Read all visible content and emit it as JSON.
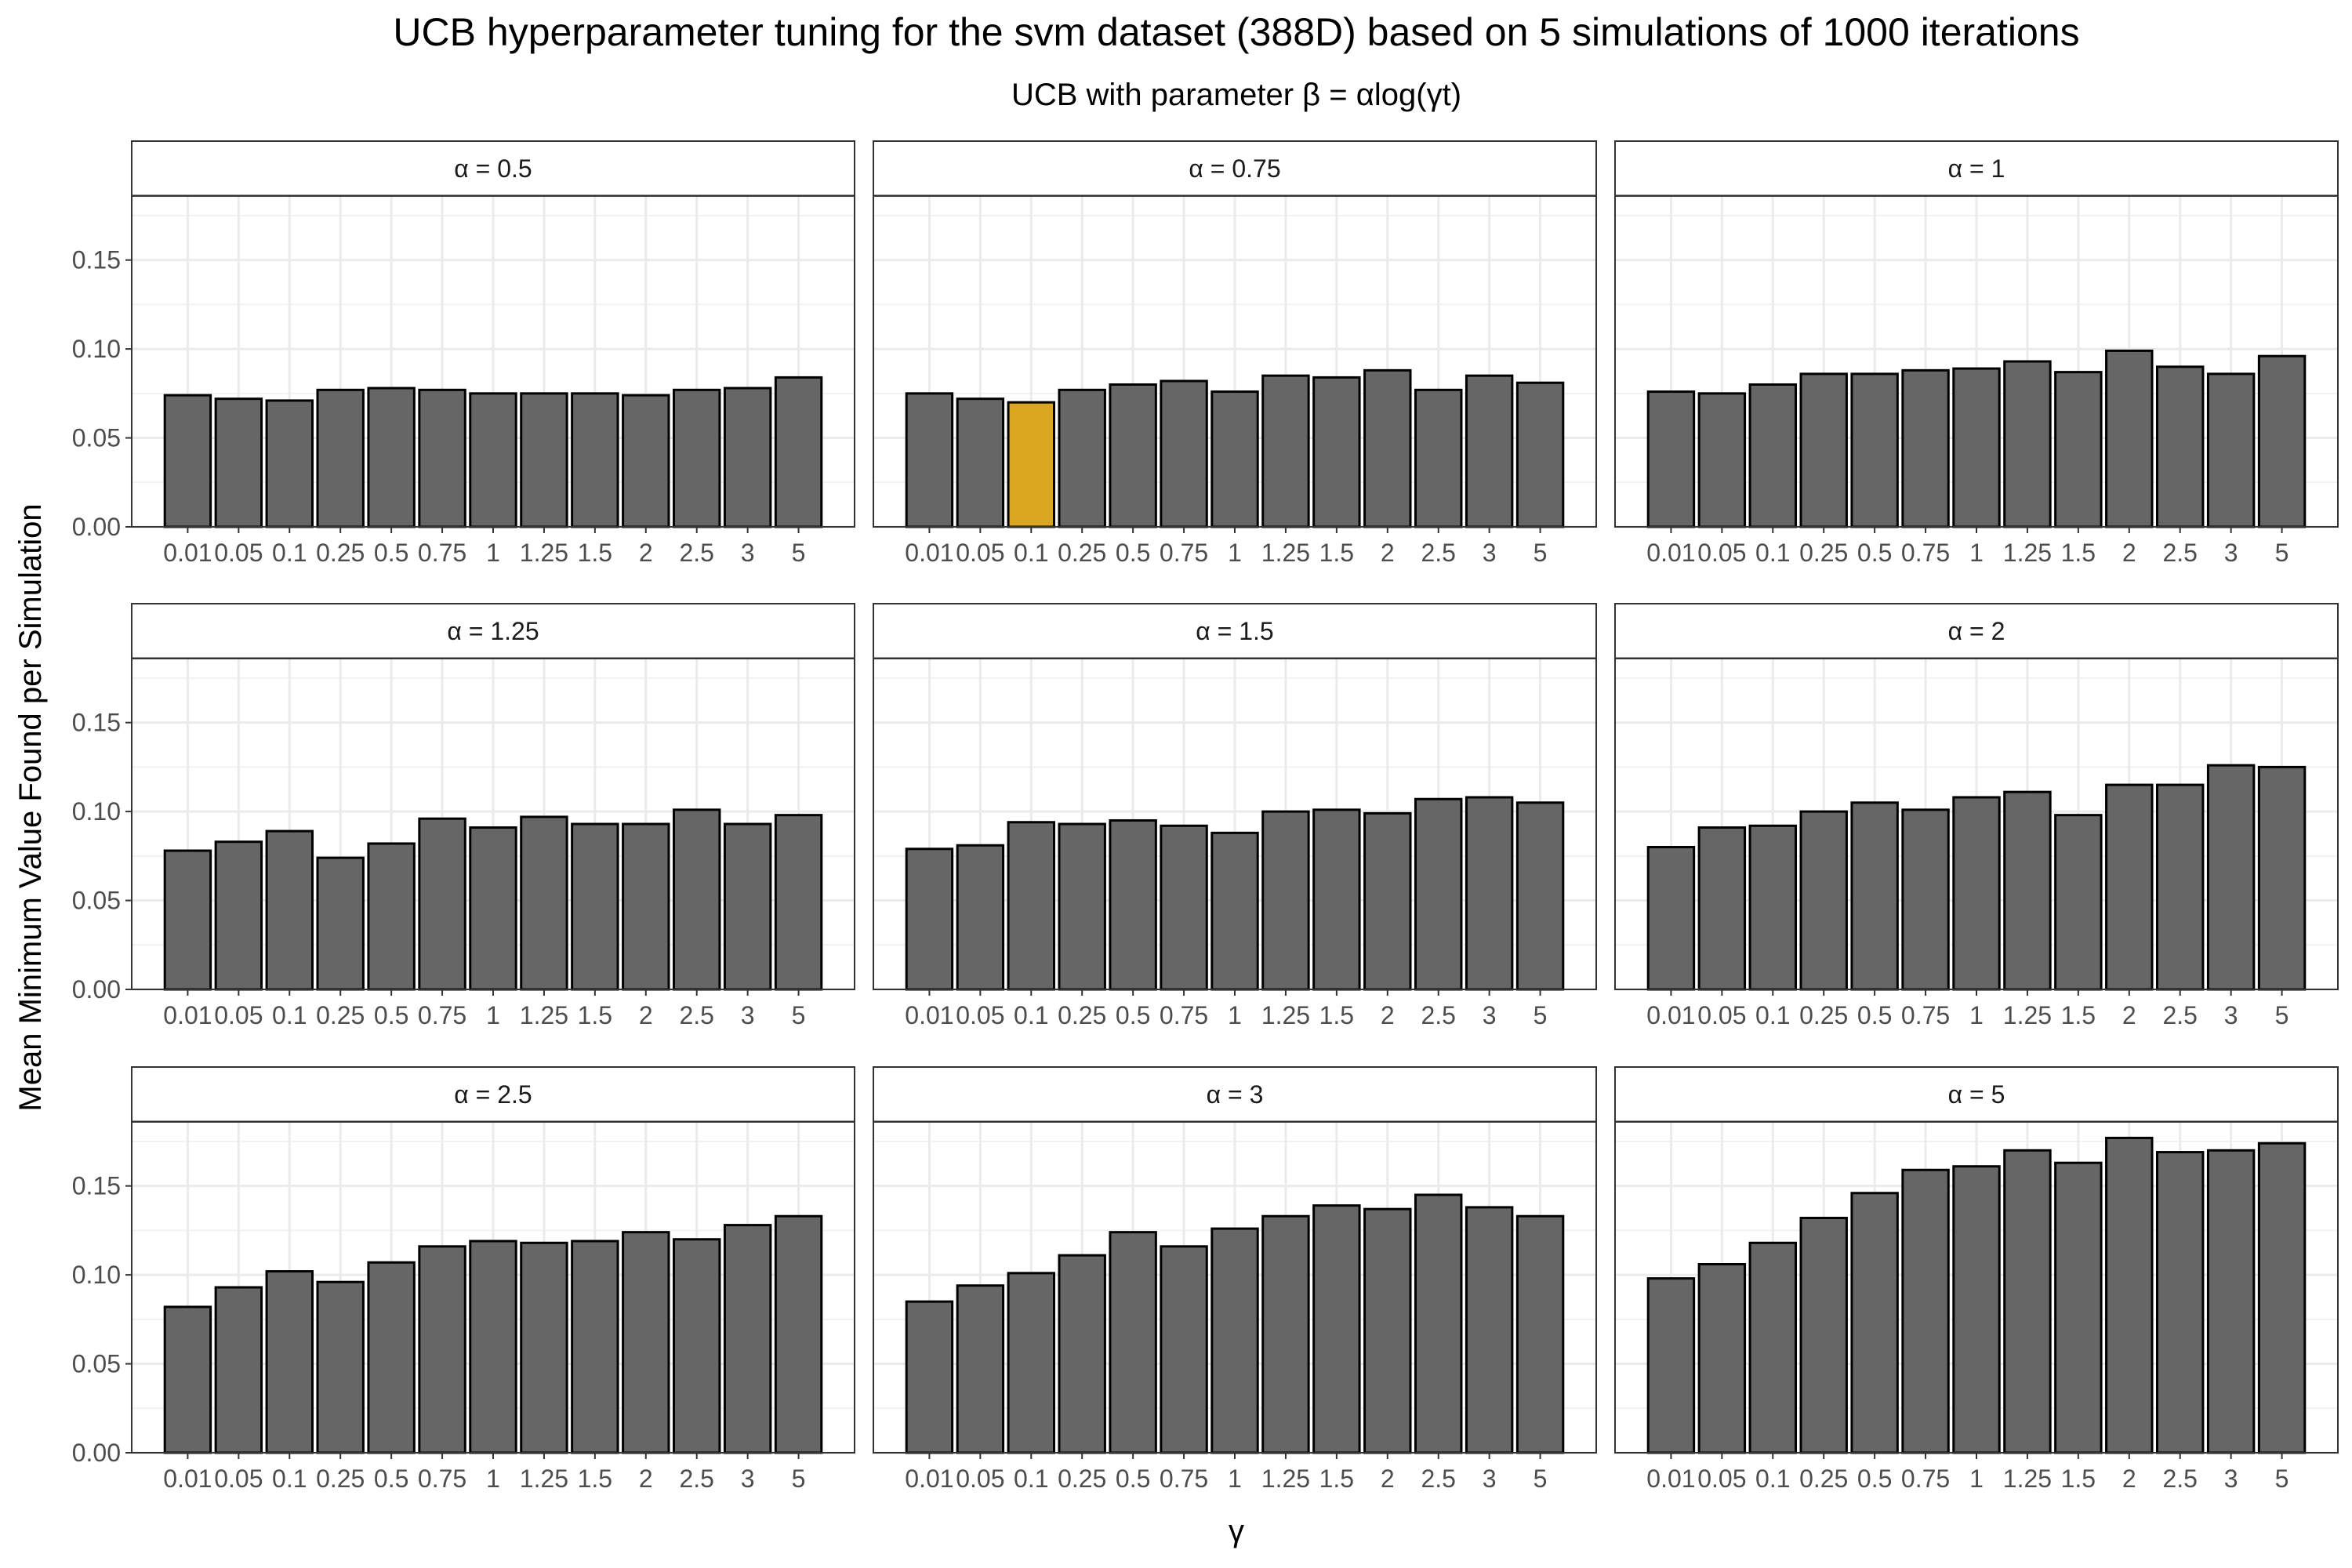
{
  "chart_data": {
    "type": "bar",
    "title": "UCB hyperparameter tuning for the svm dataset (388D) based on 5 simulations of 1000 iterations",
    "subtitle": "UCB with parameter β = αlog(γt)",
    "xlabel": "γ",
    "ylabel": "Mean Minimum Value Found per Simulation",
    "categories": [
      "0.01",
      "0.05",
      "0.1",
      "0.25",
      "0.5",
      "0.75",
      "1",
      "1.25",
      "1.5",
      "2",
      "2.5",
      "3",
      "5"
    ],
    "ylim": [
      0,
      0.186
    ],
    "yticks": [
      0.0,
      0.05,
      0.1,
      0.15
    ],
    "ytick_labels": [
      "0.00",
      "0.05",
      "0.10",
      "0.15"
    ],
    "grid": true,
    "bar_color": "#666666",
    "highlight_color": "#DAA520",
    "highlight": {
      "panel": 1,
      "category": "0.1"
    },
    "facet_layout": "3x3",
    "panels": [
      {
        "label": "α = 0.5",
        "values": [
          0.074,
          0.072,
          0.071,
          0.077,
          0.078,
          0.077,
          0.075,
          0.075,
          0.075,
          0.074,
          0.077,
          0.078,
          0.084
        ]
      },
      {
        "label": "α = 0.75",
        "values": [
          0.075,
          0.072,
          0.07,
          0.077,
          0.08,
          0.082,
          0.076,
          0.085,
          0.084,
          0.088,
          0.077,
          0.085,
          0.081
        ]
      },
      {
        "label": "α = 1",
        "values": [
          0.076,
          0.075,
          0.08,
          0.086,
          0.086,
          0.088,
          0.089,
          0.093,
          0.087,
          0.099,
          0.09,
          0.086,
          0.096
        ]
      },
      {
        "label": "α = 1.25",
        "values": [
          0.078,
          0.083,
          0.089,
          0.074,
          0.082,
          0.096,
          0.091,
          0.097,
          0.093,
          0.093,
          0.101,
          0.093,
          0.098
        ]
      },
      {
        "label": "α = 1.5",
        "values": [
          0.079,
          0.081,
          0.094,
          0.093,
          0.095,
          0.092,
          0.088,
          0.1,
          0.101,
          0.099,
          0.107,
          0.108,
          0.105
        ]
      },
      {
        "label": "α = 2",
        "values": [
          0.08,
          0.091,
          0.092,
          0.1,
          0.105,
          0.101,
          0.108,
          0.111,
          0.098,
          0.115,
          0.115,
          0.126,
          0.125
        ]
      },
      {
        "label": "α = 2.5",
        "values": [
          0.082,
          0.093,
          0.102,
          0.096,
          0.107,
          0.116,
          0.119,
          0.118,
          0.119,
          0.124,
          0.12,
          0.128,
          0.133
        ]
      },
      {
        "label": "α = 3",
        "values": [
          0.085,
          0.094,
          0.101,
          0.111,
          0.124,
          0.116,
          0.126,
          0.133,
          0.139,
          0.137,
          0.145,
          0.138,
          0.133
        ]
      },
      {
        "label": "α = 5",
        "values": [
          0.098,
          0.106,
          0.118,
          0.132,
          0.146,
          0.159,
          0.161,
          0.17,
          0.163,
          0.177,
          0.169,
          0.17,
          0.174
        ]
      }
    ]
  }
}
